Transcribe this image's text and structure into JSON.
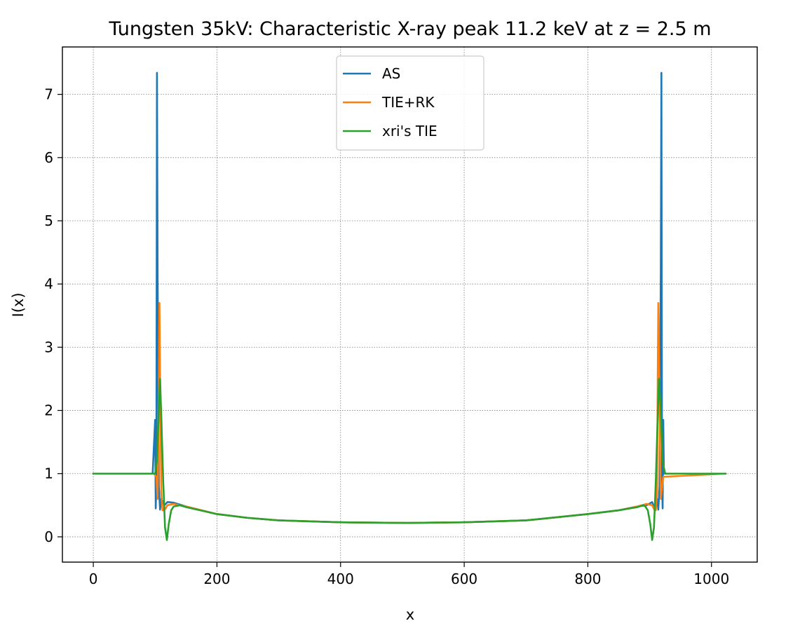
{
  "chart_data": {
    "type": "line",
    "title": "Tungsten 35kV: Characteristic X-ray peak 11.2 keV at z = 2.5 m",
    "xlabel": "x",
    "ylabel": "I(x)",
    "xlim": [
      -50,
      1074
    ],
    "ylim": [
      -0.4,
      7.75
    ],
    "xticks": [
      0,
      200,
      400,
      600,
      800,
      1000
    ],
    "yticks": [
      0,
      1,
      2,
      3,
      4,
      5,
      6,
      7
    ],
    "grid": true,
    "legend_position": "top-center",
    "series": [
      {
        "name": "AS",
        "color": "#1f77b4",
        "x": [
          0,
          96,
          100,
          101,
          102,
          103,
          104,
          106,
          108,
          110,
          115,
          120,
          130,
          150,
          200,
          250,
          300,
          400,
          500,
          512,
          600,
          700,
          800,
          850,
          880,
          895,
          904,
          908,
          912,
          914,
          916,
          918,
          919,
          920,
          921,
          922,
          923,
          924,
          928,
          1023
        ],
        "y": [
          1.0,
          1.0,
          1.85,
          0.45,
          0.9,
          7.34,
          4.2,
          0.8,
          0.43,
          0.6,
          0.5,
          0.55,
          0.54,
          0.48,
          0.36,
          0.3,
          0.26,
          0.23,
          0.22,
          0.22,
          0.23,
          0.26,
          0.36,
          0.42,
          0.48,
          0.5,
          0.55,
          0.45,
          0.6,
          0.43,
          0.8,
          4.2,
          7.34,
          0.9,
          0.45,
          1.85,
          1.0,
          1.0,
          1.0,
          1.0
        ]
      },
      {
        "name": "TIE+RK",
        "color": "#ff7f0e",
        "x": [
          0,
          98,
          102,
          104,
          106,
          107,
          108,
          110,
          112,
          115,
          120,
          130,
          150,
          200,
          250,
          300,
          400,
          500,
          512,
          600,
          700,
          800,
          850,
          880,
          895,
          904,
          908,
          910,
          912,
          913,
          914,
          916,
          918,
          922,
          1023
        ],
        "y": [
          1.0,
          1.0,
          0.95,
          0.6,
          2.0,
          3.7,
          2.5,
          0.7,
          0.42,
          0.42,
          0.5,
          0.52,
          0.48,
          0.36,
          0.3,
          0.26,
          0.23,
          0.22,
          0.22,
          0.23,
          0.26,
          0.36,
          0.42,
          0.48,
          0.52,
          0.5,
          0.42,
          0.42,
          0.7,
          2.5,
          3.7,
          2.0,
          0.6,
          0.95,
          1.0
        ]
      },
      {
        "name": "xri's TIE",
        "color": "#2ca02c",
        "x": [
          0,
          96,
          100,
          103,
          106,
          108,
          110,
          113,
          116,
          119,
          122,
          126,
          130,
          140,
          150,
          200,
          250,
          300,
          400,
          500,
          512,
          600,
          700,
          800,
          850,
          880,
          890,
          893,
          897,
          901,
          904,
          907,
          910,
          913,
          915,
          918,
          921,
          925,
          1023
        ],
        "y": [
          1.0,
          1.0,
          1.0,
          1.2,
          2.0,
          2.5,
          1.9,
          0.9,
          0.15,
          -0.05,
          0.2,
          0.42,
          0.48,
          0.5,
          0.47,
          0.36,
          0.3,
          0.26,
          0.23,
          0.22,
          0.22,
          0.23,
          0.26,
          0.36,
          0.42,
          0.47,
          0.5,
          0.48,
          0.42,
          0.2,
          -0.05,
          0.15,
          0.9,
          1.9,
          2.5,
          2.0,
          1.2,
          1.0,
          1.0
        ]
      }
    ]
  }
}
